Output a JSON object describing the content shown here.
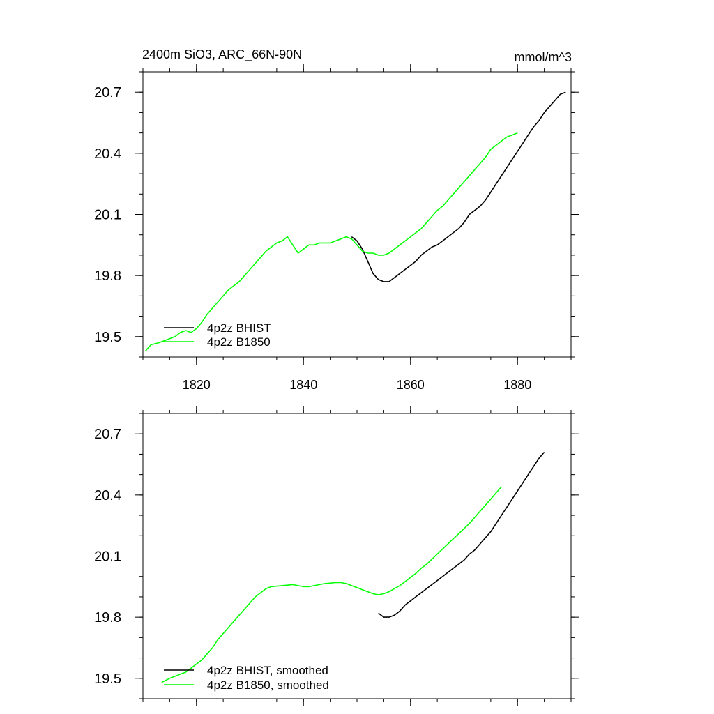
{
  "chart_data": [
    {
      "type": "line",
      "title": "2400m SiO3, ARC_66N-90N",
      "units": "mmol/m^3",
      "xlim": [
        1810,
        1890
      ],
      "ylim": [
        19.4,
        20.8
      ],
      "x_ticks": [
        1820,
        1840,
        1860,
        1880
      ],
      "x_tick_labels": [
        "1820",
        "1840",
        "1860",
        "1880"
      ],
      "y_ticks": [
        19.5,
        19.8,
        20.1,
        20.4,
        20.7
      ],
      "y_tick_labels": [
        "19.5",
        "19.8",
        "20.1",
        "20.4",
        "20.7"
      ],
      "legend_position": "bottom-left",
      "series": [
        {
          "name": "4p2z BHIST",
          "color": "#000000",
          "points": [
            [
              1849,
              19.99
            ],
            [
              1850,
              19.97
            ],
            [
              1851,
              19.93
            ],
            [
              1852,
              19.87
            ],
            [
              1853,
              19.81
            ],
            [
              1854,
              19.78
            ],
            [
              1855,
              19.77
            ],
            [
              1856,
              19.77
            ],
            [
              1857,
              19.79
            ],
            [
              1858,
              19.81
            ],
            [
              1859,
              19.83
            ],
            [
              1860,
              19.85
            ],
            [
              1861,
              19.87
            ],
            [
              1862,
              19.9
            ],
            [
              1863,
              19.92
            ],
            [
              1864,
              19.94
            ],
            [
              1865,
              19.95
            ],
            [
              1866,
              19.97
            ],
            [
              1867,
              19.99
            ],
            [
              1868,
              20.01
            ],
            [
              1869,
              20.03
            ],
            [
              1870,
              20.06
            ],
            [
              1871,
              20.1
            ],
            [
              1872,
              20.12
            ],
            [
              1873,
              20.14
            ],
            [
              1874,
              20.17
            ],
            [
              1875,
              20.21
            ],
            [
              1876,
              20.25
            ],
            [
              1877,
              20.29
            ],
            [
              1878,
              20.33
            ],
            [
              1879,
              20.37
            ],
            [
              1880,
              20.41
            ],
            [
              1881,
              20.45
            ],
            [
              1882,
              20.49
            ],
            [
              1883,
              20.53
            ],
            [
              1884,
              20.56
            ],
            [
              1885,
              20.6
            ],
            [
              1886,
              20.63
            ],
            [
              1887,
              20.66
            ],
            [
              1888,
              20.69
            ],
            [
              1889,
              20.7
            ]
          ]
        },
        {
          "name": "4p2z B1850",
          "color": "#00ff00",
          "points": [
            [
              1810.5,
              19.43
            ],
            [
              1811.5,
              19.46
            ],
            [
              1813,
              19.47
            ],
            [
              1814,
              19.48
            ],
            [
              1815,
              19.49
            ],
            [
              1816,
              19.5
            ],
            [
              1817,
              19.52
            ],
            [
              1818,
              19.53
            ],
            [
              1819,
              19.52
            ],
            [
              1820,
              19.54
            ],
            [
              1821,
              19.57
            ],
            [
              1822,
              19.61
            ],
            [
              1823,
              19.64
            ],
            [
              1824,
              19.67
            ],
            [
              1825,
              19.7
            ],
            [
              1826,
              19.73
            ],
            [
              1827,
              19.75
            ],
            [
              1828,
              19.77
            ],
            [
              1829,
              19.8
            ],
            [
              1830,
              19.83
            ],
            [
              1831,
              19.86
            ],
            [
              1832,
              19.89
            ],
            [
              1833,
              19.92
            ],
            [
              1834,
              19.94
            ],
            [
              1835,
              19.96
            ],
            [
              1836,
              19.97
            ],
            [
              1837,
              19.99
            ],
            [
              1838,
              19.95
            ],
            [
              1839,
              19.91
            ],
            [
              1840,
              19.93
            ],
            [
              1841,
              19.95
            ],
            [
              1842,
              19.95
            ],
            [
              1843,
              19.96
            ],
            [
              1844,
              19.96
            ],
            [
              1845,
              19.96
            ],
            [
              1846,
              19.97
            ],
            [
              1847,
              19.98
            ],
            [
              1848,
              19.99
            ],
            [
              1849,
              19.98
            ],
            [
              1850,
              19.95
            ],
            [
              1851,
              19.92
            ],
            [
              1852,
              19.91
            ],
            [
              1853,
              19.91
            ],
            [
              1854,
              19.9
            ],
            [
              1855,
              19.9
            ],
            [
              1856,
              19.91
            ],
            [
              1857,
              19.93
            ],
            [
              1858,
              19.95
            ],
            [
              1859,
              19.97
            ],
            [
              1860,
              19.99
            ],
            [
              1861,
              20.01
            ],
            [
              1862,
              20.03
            ],
            [
              1863,
              20.06
            ],
            [
              1864,
              20.09
            ],
            [
              1865,
              20.12
            ],
            [
              1866,
              20.14
            ],
            [
              1867,
              20.17
            ],
            [
              1868,
              20.2
            ],
            [
              1869,
              20.23
            ],
            [
              1870,
              20.26
            ],
            [
              1871,
              20.29
            ],
            [
              1872,
              20.32
            ],
            [
              1873,
              20.35
            ],
            [
              1874,
              20.38
            ],
            [
              1875,
              20.42
            ],
            [
              1876,
              20.44
            ],
            [
              1877,
              20.46
            ],
            [
              1878,
              20.48
            ],
            [
              1879,
              20.49
            ],
            [
              1880,
              20.5
            ]
          ]
        }
      ]
    },
    {
      "type": "line",
      "xlim": [
        1810,
        1890
      ],
      "ylim": [
        19.4,
        20.8
      ],
      "x_ticks": [
        1820,
        1840,
        1860,
        1880
      ],
      "y_ticks": [
        19.5,
        19.8,
        20.1,
        20.4,
        20.7
      ],
      "y_tick_labels": [
        "19.5",
        "19.8",
        "20.1",
        "20.4",
        "20.7"
      ],
      "legend_position": "bottom-left",
      "series": [
        {
          "name": "4p2z BHIST, smoothed",
          "color": "#000000",
          "points": [
            [
              1854,
              19.82
            ],
            [
              1855,
              19.8
            ],
            [
              1856,
              19.8
            ],
            [
              1857,
              19.81
            ],
            [
              1858,
              19.83
            ],
            [
              1859,
              19.86
            ],
            [
              1860,
              19.88
            ],
            [
              1861,
              19.9
            ],
            [
              1862,
              19.92
            ],
            [
              1863,
              19.94
            ],
            [
              1864,
              19.96
            ],
            [
              1865,
              19.98
            ],
            [
              1866,
              20.0
            ],
            [
              1867,
              20.02
            ],
            [
              1868,
              20.04
            ],
            [
              1869,
              20.06
            ],
            [
              1870,
              20.08
            ],
            [
              1871,
              20.11
            ],
            [
              1872,
              20.13
            ],
            [
              1873,
              20.16
            ],
            [
              1874,
              20.19
            ],
            [
              1875,
              20.22
            ],
            [
              1876,
              20.26
            ],
            [
              1877,
              20.3
            ],
            [
              1878,
              20.34
            ],
            [
              1879,
              20.38
            ],
            [
              1880,
              20.42
            ],
            [
              1881,
              20.46
            ],
            [
              1882,
              20.5
            ],
            [
              1883,
              20.54
            ],
            [
              1884,
              20.58
            ],
            [
              1885,
              20.61
            ]
          ]
        },
        {
          "name": "4p2z B1850, smoothed",
          "color": "#00ff00",
          "points": [
            [
              1813.5,
              19.48
            ],
            [
              1815,
              19.5
            ],
            [
              1817,
              19.52
            ],
            [
              1818,
              19.53
            ],
            [
              1819,
              19.55
            ],
            [
              1820,
              19.57
            ],
            [
              1821,
              19.59
            ],
            [
              1822,
              19.62
            ],
            [
              1823,
              19.65
            ],
            [
              1824,
              19.69
            ],
            [
              1825,
              19.72
            ],
            [
              1826,
              19.75
            ],
            [
              1827,
              19.78
            ],
            [
              1828,
              19.81
            ],
            [
              1829,
              19.84
            ],
            [
              1830,
              19.87
            ],
            [
              1831,
              19.9
            ],
            [
              1832,
              19.92
            ],
            [
              1833,
              19.94
            ],
            [
              1834,
              19.95
            ],
            [
              1836,
              19.955
            ],
            [
              1838,
              19.96
            ],
            [
              1839,
              19.955
            ],
            [
              1840,
              19.95
            ],
            [
              1841,
              19.95
            ],
            [
              1842,
              19.955
            ],
            [
              1844,
              19.965
            ],
            [
              1846,
              19.97
            ],
            [
              1847,
              19.97
            ],
            [
              1848,
              19.965
            ],
            [
              1849,
              19.955
            ],
            [
              1850,
              19.945
            ],
            [
              1851,
              19.935
            ],
            [
              1852,
              19.925
            ],
            [
              1853,
              19.915
            ],
            [
              1854,
              19.91
            ],
            [
              1855,
              19.915
            ],
            [
              1856,
              19.925
            ],
            [
              1857,
              19.94
            ],
            [
              1858,
              19.955
            ],
            [
              1859,
              19.975
            ],
            [
              1860,
              19.995
            ],
            [
              1861,
              20.015
            ],
            [
              1862,
              20.04
            ],
            [
              1863,
              20.06
            ],
            [
              1864,
              20.085
            ],
            [
              1865,
              20.11
            ],
            [
              1866,
              20.135
            ],
            [
              1867,
              20.16
            ],
            [
              1868,
              20.185
            ],
            [
              1869,
              20.21
            ],
            [
              1870,
              20.235
            ],
            [
              1871,
              20.26
            ],
            [
              1872,
              20.29
            ],
            [
              1873,
              20.32
            ],
            [
              1874,
              20.35
            ],
            [
              1875,
              20.38
            ],
            [
              1876,
              20.41
            ],
            [
              1877,
              20.44
            ]
          ]
        }
      ]
    }
  ]
}
